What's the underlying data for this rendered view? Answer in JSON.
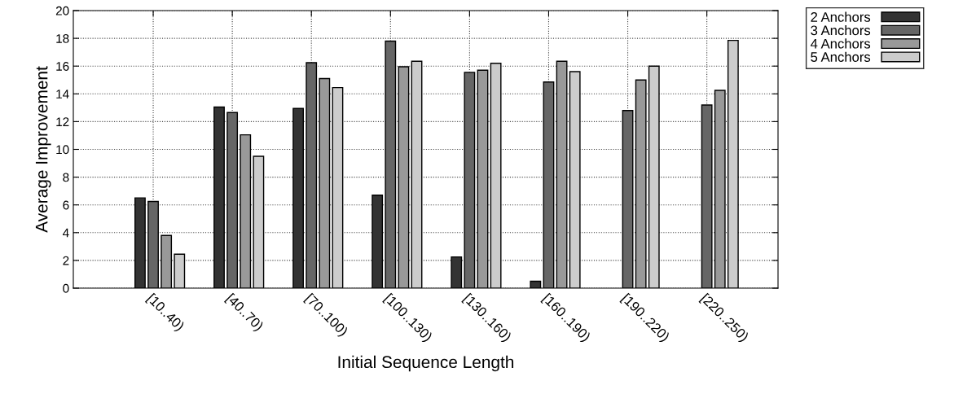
{
  "chart_data": {
    "type": "bar",
    "xlabel": "Initial Sequence Length",
    "ylabel": "Average Improvement",
    "categories": [
      "[10..40)",
      "[40..70)",
      "[70..100)",
      "[100..130)",
      "[130..160)",
      "[160..190)",
      "[190..220)",
      "[220..250)"
    ],
    "series": [
      {
        "name": "2 Anchors",
        "color": "#333333",
        "values": [
          6.5,
          13.05,
          12.95,
          6.7,
          2.25,
          0.5,
          null,
          null
        ]
      },
      {
        "name": "3 Anchors",
        "color": "#666666",
        "values": [
          6.25,
          12.65,
          16.25,
          17.8,
          15.55,
          14.85,
          12.8,
          13.2
        ]
      },
      {
        "name": "4 Anchors",
        "color": "#999999",
        "values": [
          3.8,
          11.05,
          15.1,
          15.95,
          15.7,
          16.35,
          15.0,
          14.25
        ]
      },
      {
        "name": "5 Anchors",
        "color": "#cccccc",
        "values": [
          2.45,
          9.5,
          14.45,
          16.35,
          16.2,
          15.6,
          16.0,
          17.85
        ]
      }
    ],
    "ylim": [
      0,
      20
    ],
    "yticks": [
      0,
      2,
      4,
      6,
      8,
      10,
      12,
      14,
      16,
      18,
      20
    ],
    "grid": true,
    "legend": "top right"
  }
}
